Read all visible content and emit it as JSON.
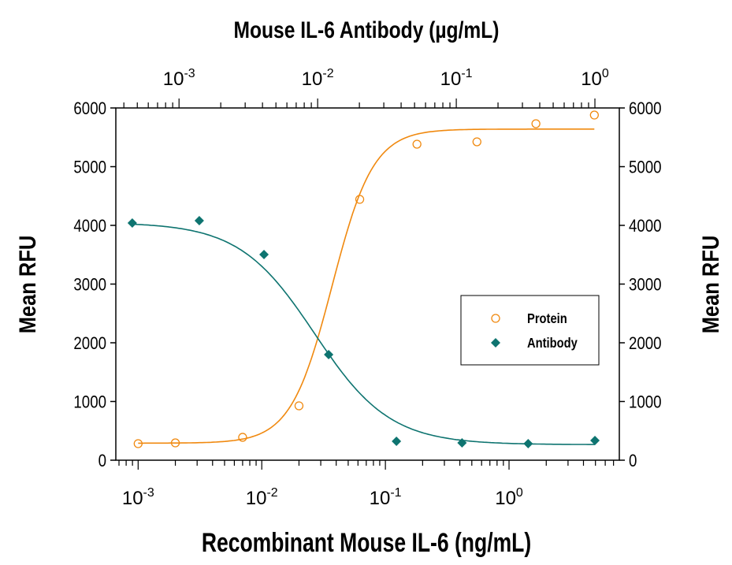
{
  "chart_data": {
    "type": "scatter",
    "title": "",
    "top_axis_label": "Mouse IL-6 Antibody (µg/mL)",
    "xlabel": "Recombinant Mouse IL-6 (ng/mL)",
    "ylabel": "Mean RFU",
    "ylabel_right": "Mean RFU",
    "x_scale": "log",
    "x_ticks": [
      "10^-3",
      "10^-2",
      "10^-1",
      "10^0"
    ],
    "top_x_ticks": [
      "10^-3",
      "10^-2",
      "10^-1",
      "10^0"
    ],
    "xlim": [
      0.00066,
      7.8
    ],
    "top_xlim": [
      0.00035,
      1.5
    ],
    "ylim": [
      0,
      6000
    ],
    "y_ticks": [
      "0",
      "1000",
      "2000",
      "3000",
      "4000",
      "5000",
      "6000"
    ],
    "grid": false,
    "legend_placement": "center-right",
    "series": [
      {
        "name": "Protein",
        "axis": "bottom",
        "marker": "open-circle",
        "color": "#f0890f",
        "x": [
          0.001,
          0.002,
          0.007,
          0.02,
          0.062,
          0.18,
          0.55,
          1.65,
          4.9
        ],
        "y": [
          282,
          295,
          390,
          926,
          4443,
          5383,
          5423,
          5732,
          5879
        ],
        "fit": {
          "bottom": 290,
          "top": 5640,
          "ec50": 0.037,
          "hill": 2.6
        }
      },
      {
        "name": "Antibody",
        "axis": "top",
        "marker": "filled-diamond",
        "color": "#0e7470",
        "x": [
          0.00046,
          0.0014,
          0.0041,
          0.012,
          0.037,
          0.11,
          0.33,
          1.0
        ],
        "y": [
          4040,
          4080,
          3503,
          1799,
          322,
          295,
          282,
          336
        ],
        "fit": {
          "bottom": 265,
          "top": 4050,
          "ec50": 0.0095,
          "hill": 1.6
        }
      }
    ]
  }
}
